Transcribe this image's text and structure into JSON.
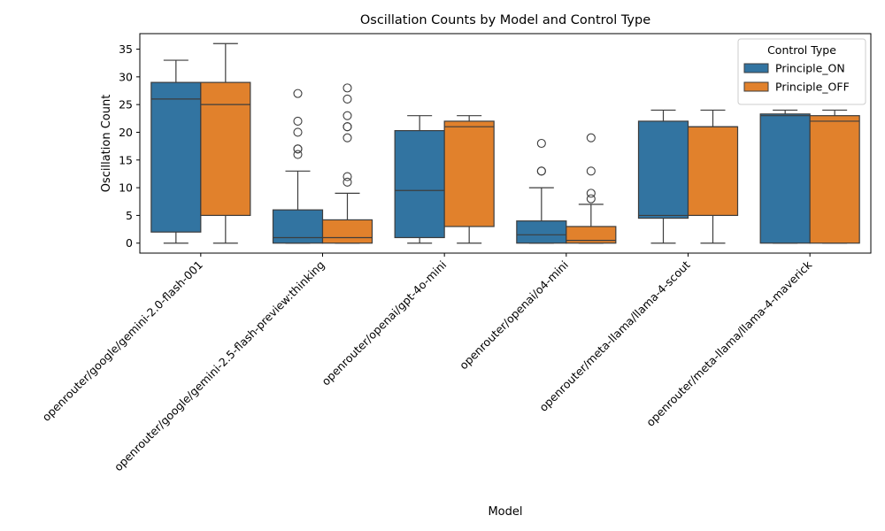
{
  "chart_data": {
    "type": "box",
    "title": "Oscillation Counts by Model and Control Type",
    "xlabel": "Model",
    "ylabel": "Oscillation Count",
    "ylim": [
      -1.8,
      37.8
    ],
    "yticks": [
      0,
      5,
      10,
      15,
      20,
      25,
      30,
      35
    ],
    "grid": false,
    "legend": {
      "title": "Control Type",
      "placement": "top-right"
    },
    "categories": [
      "openrouter/google/gemini-2.0-flash-001",
      "openrouter/google/gemini-2.5-flash-preview:thinking",
      "openrouter/openai/gpt-4o-mini",
      "openrouter/openai/o4-mini",
      "openrouter/meta-llama/llama-4-scout",
      "openrouter/meta-llama/llama-4-maverick"
    ],
    "series": [
      {
        "name": "Principle_ON",
        "color": "#3274a1",
        "boxes": [
          {
            "whisker_low": 0,
            "q1": 2,
            "median": 26,
            "q3": 29,
            "whisker_high": 33,
            "outliers": []
          },
          {
            "whisker_low": 0,
            "q1": 0,
            "median": 1,
            "q3": 6,
            "whisker_high": 13,
            "outliers": [
              16,
              17,
              17,
              20,
              22,
              27
            ]
          },
          {
            "whisker_low": 0,
            "q1": 1,
            "median": 9.5,
            "q3": 20.3,
            "whisker_high": 23,
            "outliers": []
          },
          {
            "whisker_low": 0,
            "q1": 0,
            "median": 1.5,
            "q3": 4,
            "whisker_high": 10,
            "outliers": [
              13,
              13,
              18
            ]
          },
          {
            "whisker_low": 0,
            "q1": 4.5,
            "median": 5,
            "q3": 22,
            "whisker_high": 24,
            "outliers": []
          },
          {
            "whisker_low": 0,
            "q1": 0,
            "median": 23,
            "q3": 23.3,
            "whisker_high": 24,
            "outliers": []
          }
        ]
      },
      {
        "name": "Principle_OFF",
        "color": "#e1812c",
        "boxes": [
          {
            "whisker_low": 0,
            "q1": 5,
            "median": 25,
            "q3": 29,
            "whisker_high": 36,
            "outliers": []
          },
          {
            "whisker_low": 0,
            "q1": 0,
            "median": 1,
            "q3": 4.2,
            "whisker_high": 9,
            "outliers": [
              11,
              12,
              19,
              21,
              21,
              23,
              26,
              28
            ]
          },
          {
            "whisker_low": 0,
            "q1": 3,
            "median": 21,
            "q3": 22,
            "whisker_high": 23,
            "outliers": []
          },
          {
            "whisker_low": 0,
            "q1": 0,
            "median": 0.5,
            "q3": 3,
            "whisker_high": 7,
            "outliers": [
              8,
              9,
              13,
              19
            ]
          },
          {
            "whisker_low": 0,
            "q1": 5,
            "median": 21,
            "q3": 21,
            "whisker_high": 24,
            "outliers": []
          },
          {
            "whisker_low": 0,
            "q1": 0,
            "median": 22,
            "q3": 23,
            "whisker_high": 24,
            "outliers": []
          }
        ]
      }
    ]
  }
}
